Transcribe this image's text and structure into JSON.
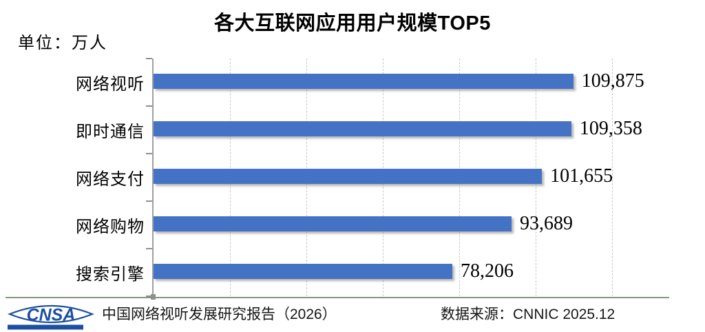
{
  "chart_data": {
    "type": "bar",
    "orientation": "horizontal",
    "title": "各大互联网应用用户规模TOP5",
    "unit_label": "单位：万人",
    "categories": [
      "网络视听",
      "即时通信",
      "网络支付",
      "网络购物",
      "搜索引擎"
    ],
    "values": [
      109875,
      109358,
      101655,
      93689,
      78206
    ],
    "value_labels": [
      "109,875",
      "109,358",
      "101,655",
      "93,689",
      "78,206"
    ],
    "xlabel": "",
    "ylabel": "",
    "xlim": [
      0,
      140000
    ],
    "gridline_interval": 20000,
    "grid": "vertical-dashed",
    "legend": "none",
    "value_label_position": "outside-end",
    "bar_color": "#4472C4"
  },
  "footer": {
    "logo_text": "CNSA",
    "report_label": "中国网络视听发展研究报告（2026）",
    "source_label": "数据来源：CNNIC 2025.12"
  },
  "colors": {
    "bar": "#4472C4",
    "axis": "#a0a0a0",
    "gridline": "#c7c7c7",
    "divider": "#83987d",
    "logo_blue": "#1d4fa0",
    "text": "#000000"
  }
}
